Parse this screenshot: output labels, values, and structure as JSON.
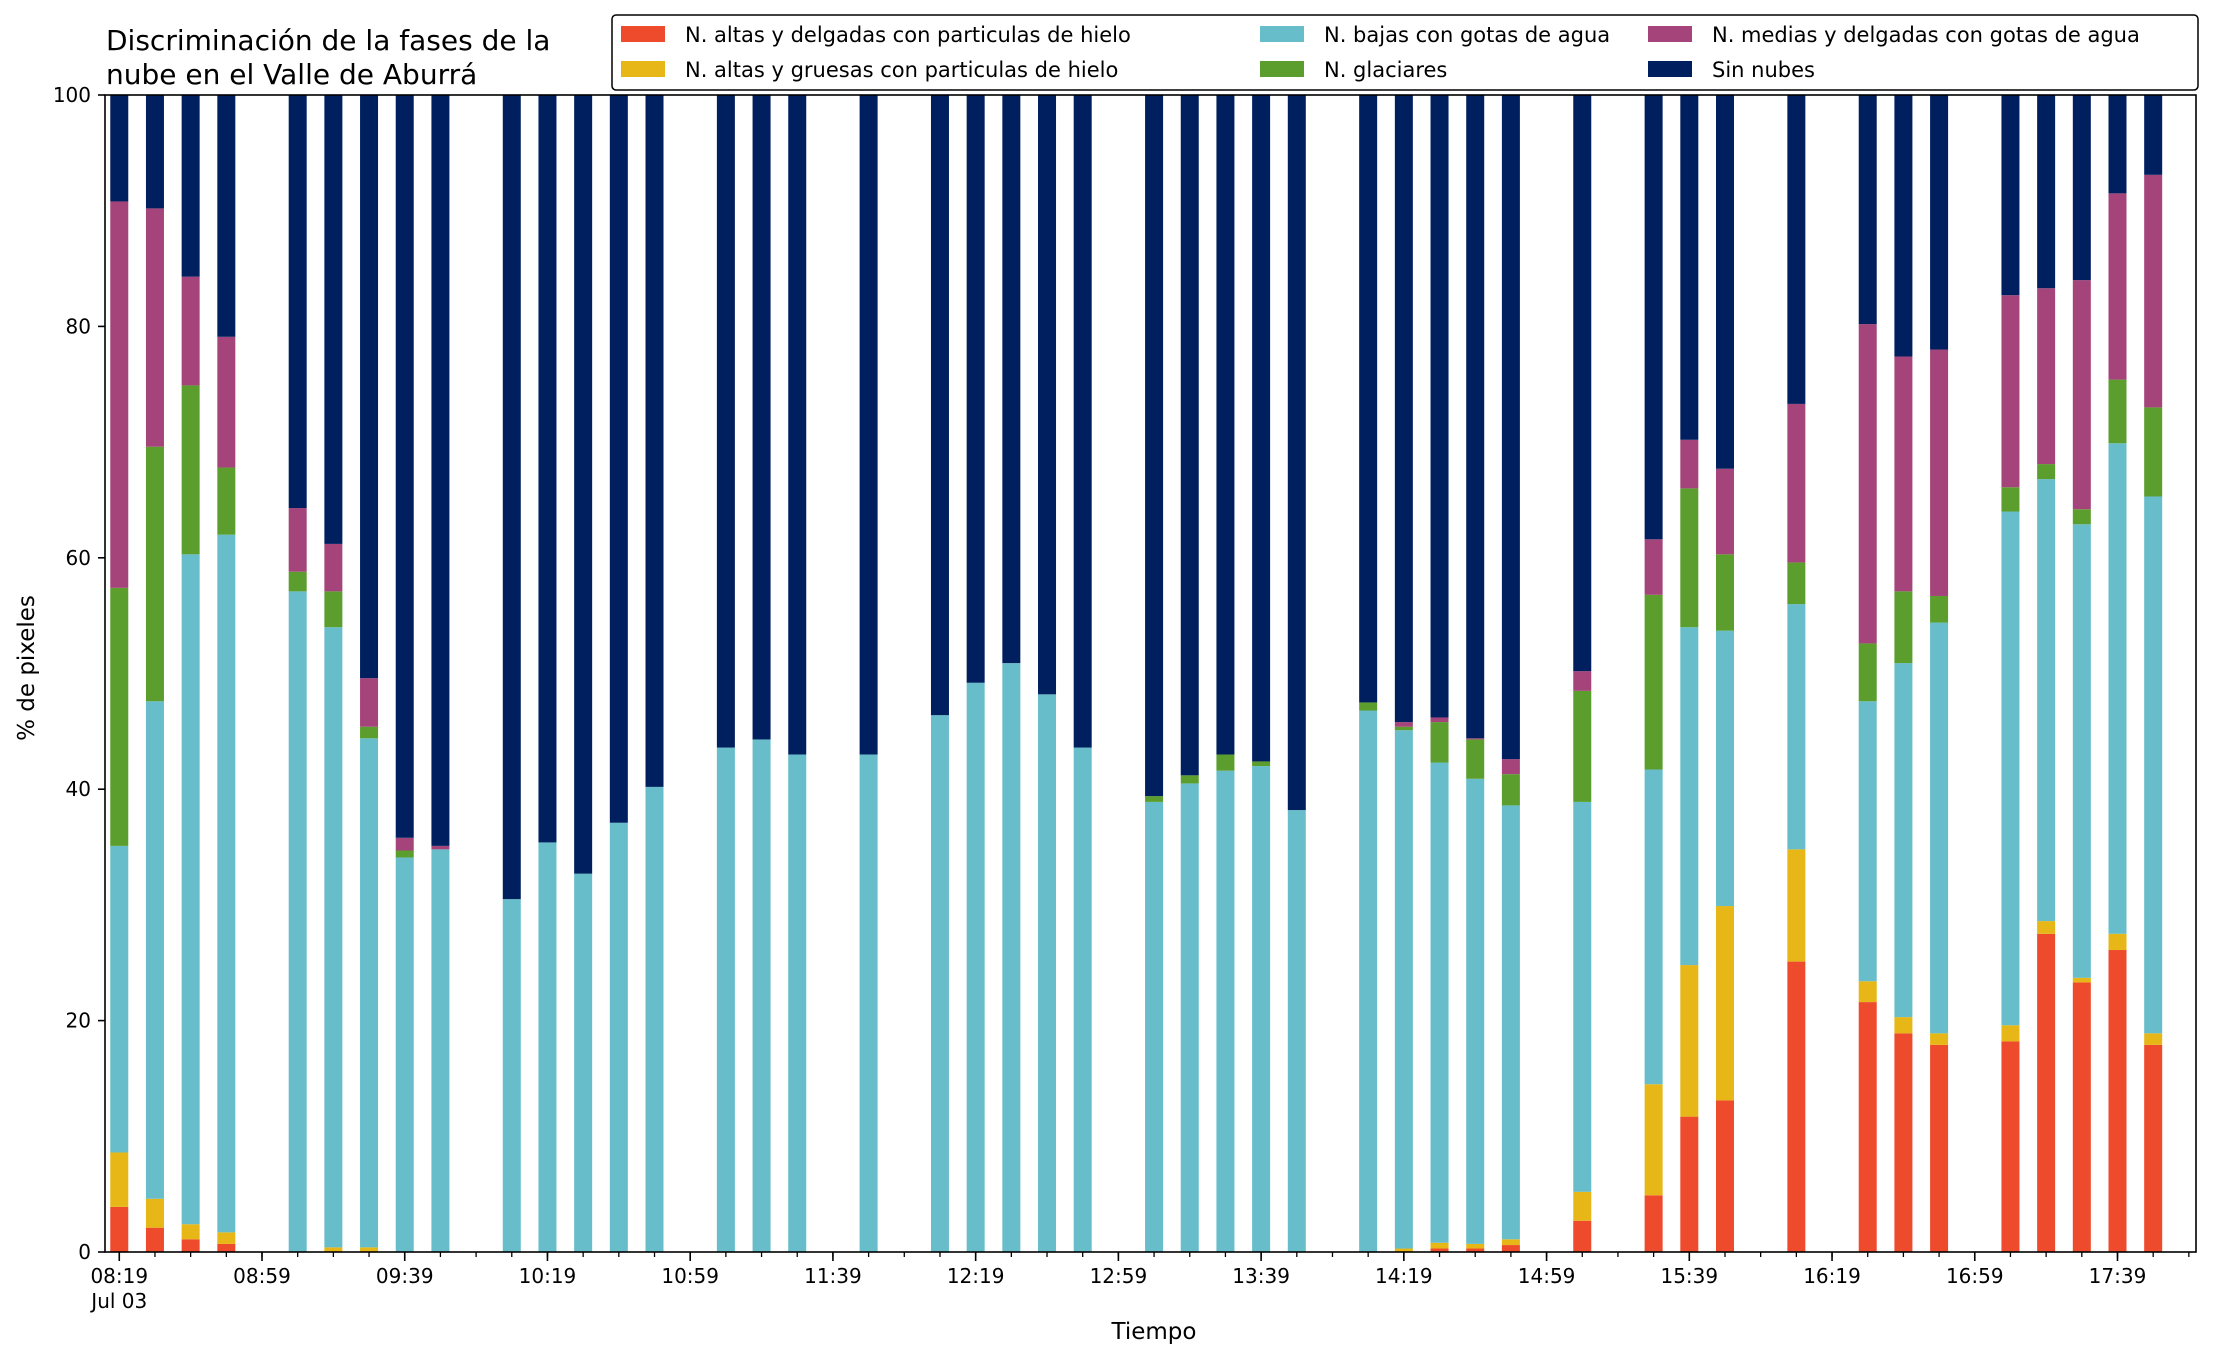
{
  "chart_data": {
    "type": "bar",
    "stacked": true,
    "title_lines": [
      "Discriminación de la fases de la",
      "nube en el Valle de Aburrá"
    ],
    "xlabel": "Tiempo",
    "ylabel": "% de pixeles",
    "ylim": [
      0,
      100
    ],
    "yticks": [
      0,
      20,
      40,
      60,
      80,
      100
    ],
    "xlim_minutes": [
      495,
      1081
    ],
    "xtick_labels": [
      {
        "t": 499,
        "label": "08:19",
        "sub": "Jul 03"
      },
      {
        "t": 539,
        "label": "08:59"
      },
      {
        "t": 579,
        "label": "09:39"
      },
      {
        "t": 619,
        "label": "10:19"
      },
      {
        "t": 659,
        "label": "10:59"
      },
      {
        "t": 699,
        "label": "11:39"
      },
      {
        "t": 739,
        "label": "12:19"
      },
      {
        "t": 779,
        "label": "12:59"
      },
      {
        "t": 819,
        "label": "13:39"
      },
      {
        "t": 859,
        "label": "14:19"
      },
      {
        "t": 899,
        "label": "14:59"
      },
      {
        "t": 939,
        "label": "15:39"
      },
      {
        "t": 979,
        "label": "16:19"
      },
      {
        "t": 1019,
        "label": "16:59"
      },
      {
        "t": 1059,
        "label": "17:39"
      }
    ],
    "legend_position": "top-right",
    "legend_columns": 3,
    "series": [
      {
        "name": "N. altas y delgadas con particulas de hielo",
        "color": "#ee4a2c"
      },
      {
        "name": "N. altas y gruesas con particulas de hielo",
        "color": "#e6b716"
      },
      {
        "name": "N. bajas con gotas de agua",
        "color": "#67bdca"
      },
      {
        "name": "N. glaciares",
        "color": "#5b9e2d"
      },
      {
        "name": "N. medias y delgadas con gotas de agua",
        "color": "#a5447b"
      },
      {
        "name": "Sin nubes",
        "color": "#001f5f"
      }
    ],
    "legend_order": [
      0,
      2,
      4,
      1,
      3,
      5
    ],
    "bars": [
      {
        "t": 499,
        "values": [
          3.9,
          4.7,
          26.5,
          22.3,
          33.4,
          9.2
        ]
      },
      {
        "t": 509,
        "values": [
          2.1,
          2.5,
          43.0,
          22.0,
          20.6,
          9.8
        ]
      },
      {
        "t": 519,
        "values": [
          1.1,
          1.3,
          57.9,
          14.6,
          9.4,
          15.7
        ]
      },
      {
        "t": 529,
        "values": [
          0.7,
          1.0,
          60.3,
          5.8,
          11.3,
          20.9
        ]
      },
      {
        "t": 549,
        "values": [
          0,
          0,
          57.1,
          1.7,
          5.5,
          35.7
        ]
      },
      {
        "t": 559,
        "values": [
          0,
          0.4,
          53.6,
          3.1,
          4.1,
          38.8
        ]
      },
      {
        "t": 569,
        "values": [
          0,
          0.4,
          44.0,
          1.0,
          4.2,
          50.4
        ]
      },
      {
        "t": 579,
        "values": [
          0,
          0,
          34.1,
          0.6,
          1.1,
          64.2
        ]
      },
      {
        "t": 589,
        "values": [
          0,
          0,
          34.8,
          0,
          0.3,
          64.9
        ]
      },
      {
        "t": 609,
        "values": [
          0,
          0,
          30.5,
          0,
          0,
          69.5
        ]
      },
      {
        "t": 619,
        "values": [
          0,
          0,
          35.4,
          0,
          0,
          64.6
        ]
      },
      {
        "t": 629,
        "values": [
          0,
          0,
          32.7,
          0,
          0,
          67.3
        ]
      },
      {
        "t": 639,
        "values": [
          0,
          0,
          37.1,
          0,
          0,
          62.9
        ]
      },
      {
        "t": 649,
        "values": [
          0,
          0,
          40.2,
          0,
          0,
          59.8
        ]
      },
      {
        "t": 669,
        "values": [
          0,
          0,
          43.6,
          0,
          0,
          56.4
        ]
      },
      {
        "t": 679,
        "values": [
          0,
          0,
          44.3,
          0,
          0,
          55.7
        ]
      },
      {
        "t": 689,
        "values": [
          0,
          0,
          43.0,
          0,
          0,
          57.0
        ]
      },
      {
        "t": 709,
        "values": [
          0,
          0,
          43.0,
          0,
          0,
          57.0
        ]
      },
      {
        "t": 729,
        "values": [
          0,
          0,
          46.4,
          0,
          0,
          53.6
        ]
      },
      {
        "t": 739,
        "values": [
          0,
          0,
          49.2,
          0,
          0,
          50.8
        ]
      },
      {
        "t": 749,
        "values": [
          0,
          0,
          50.9,
          0,
          0,
          49.1
        ]
      },
      {
        "t": 759,
        "values": [
          0,
          0,
          48.2,
          0,
          0,
          51.8
        ]
      },
      {
        "t": 769,
        "values": [
          0,
          0,
          43.6,
          0,
          0,
          56.4
        ]
      },
      {
        "t": 789,
        "values": [
          0,
          0,
          38.9,
          0.5,
          0,
          60.6
        ]
      },
      {
        "t": 799,
        "values": [
          0,
          0,
          40.5,
          0.7,
          0,
          58.8
        ]
      },
      {
        "t": 809,
        "values": [
          0,
          0,
          41.6,
          1.4,
          0,
          57.0
        ]
      },
      {
        "t": 819,
        "values": [
          0,
          0,
          42.0,
          0.4,
          0,
          57.6
        ]
      },
      {
        "t": 829,
        "values": [
          0,
          0,
          38.2,
          0,
          0,
          61.8
        ]
      },
      {
        "t": 849,
        "values": [
          0,
          0,
          46.8,
          0.7,
          0,
          52.5
        ]
      },
      {
        "t": 859,
        "values": [
          0,
          0.3,
          44.8,
          0.3,
          0.4,
          54.2
        ]
      },
      {
        "t": 869,
        "values": [
          0.3,
          0.5,
          41.5,
          3.5,
          0.4,
          53.8
        ]
      },
      {
        "t": 879,
        "values": [
          0.3,
          0.4,
          40.2,
          3.4,
          0.1,
          55.6
        ]
      },
      {
        "t": 889,
        "values": [
          0.6,
          0.5,
          37.5,
          2.7,
          1.3,
          57.4
        ]
      },
      {
        "t": 909,
        "values": [
          2.7,
          2.5,
          33.7,
          9.6,
          1.7,
          49.8
        ]
      },
      {
        "t": 929,
        "values": [
          4.9,
          9.6,
          27.2,
          15.1,
          4.8,
          38.4
        ]
      },
      {
        "t": 939,
        "values": [
          11.7,
          13.1,
          29.2,
          12.0,
          4.2,
          29.8
        ]
      },
      {
        "t": 949,
        "values": [
          13.1,
          16.8,
          23.8,
          6.6,
          7.4,
          32.3
        ]
      },
      {
        "t": 969,
        "values": [
          25.1,
          9.7,
          21.2,
          3.6,
          13.7,
          26.7
        ]
      },
      {
        "t": 989,
        "values": [
          21.6,
          1.8,
          24.2,
          5.0,
          27.6,
          19.8
        ]
      },
      {
        "t": 999,
        "values": [
          18.9,
          1.4,
          30.6,
          6.2,
          20.3,
          22.6
        ]
      },
      {
        "t": 1009,
        "values": [
          17.9,
          1.0,
          35.5,
          2.3,
          21.3,
          22.0
        ]
      },
      {
        "t": 1029,
        "values": [
          18.2,
          1.4,
          44.4,
          2.1,
          16.6,
          17.3
        ]
      },
      {
        "t": 1039,
        "values": [
          27.5,
          1.1,
          38.2,
          1.3,
          15.2,
          16.7
        ]
      },
      {
        "t": 1049,
        "values": [
          23.3,
          0.4,
          39.2,
          1.3,
          19.8,
          16.0
        ]
      },
      {
        "t": 1059,
        "values": [
          26.1,
          1.4,
          42.4,
          5.5,
          16.1,
          8.5
        ]
      },
      {
        "t": 1069,
        "values": [
          17.9,
          1.0,
          46.4,
          7.7,
          20.1,
          6.9
        ]
      }
    ]
  }
}
